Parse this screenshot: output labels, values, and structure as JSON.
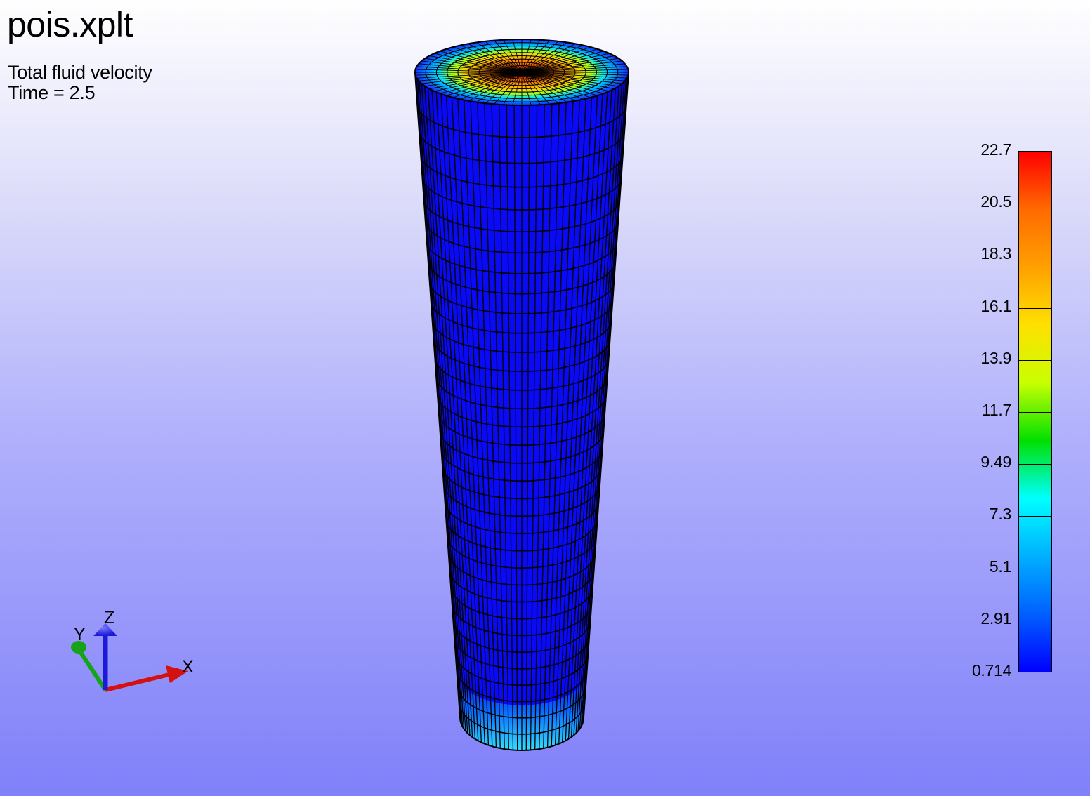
{
  "header": {
    "file_name": "pois.xplt",
    "variable": "Total fluid velocity",
    "time_label": "Time = 2.5"
  },
  "legend": {
    "max": 22.7,
    "min": 0.714,
    "labels": [
      "22.7",
      "20.5",
      "18.3",
      "16.1",
      "13.9",
      "11.7",
      "9.49",
      "7.3",
      "5.1",
      "2.91",
      "0.714"
    ],
    "colormap": [
      "#ff0000",
      "#ff6a00",
      "#ffa000",
      "#ffe000",
      "#c8ff00",
      "#00e000",
      "#00ffff",
      "#00b0ff",
      "#0060ff",
      "#0000ff"
    ]
  },
  "model": {
    "wall_color": "#0a0af5",
    "mesh_color": "#000000",
    "inlet_color": "#36e6ff",
    "outlet_center_color": "#ff2a00"
  },
  "triad": {
    "x_label": "X",
    "y_label": "Y",
    "z_label": "Z",
    "x_color": "#d41010",
    "y_color": "#17a317",
    "z_color": "#1a1ad8"
  }
}
